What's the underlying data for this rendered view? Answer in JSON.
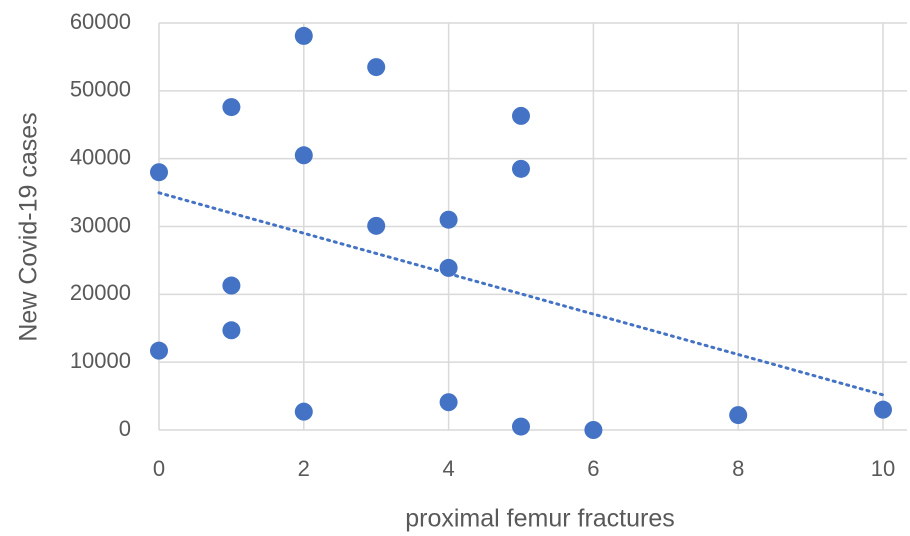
{
  "chart_data": {
    "type": "scatter",
    "x_label": "proximal femur fractures",
    "y_label": "New Covid-19 cases",
    "x": [
      0,
      0,
      1,
      1,
      1,
      2,
      2,
      2,
      3,
      3,
      4,
      4,
      4,
      5,
      5,
      5,
      6,
      8,
      10
    ],
    "values": [
      38000,
      11700,
      47600,
      21300,
      14700,
      58100,
      40500,
      2700,
      53500,
      30100,
      31000,
      23900,
      4100,
      46300,
      38500,
      500,
      0,
      2200,
      3000
    ],
    "color": "#4472c4",
    "trendline": "linear",
    "xlim": [
      0,
      10
    ],
    "xticks": [
      0,
      2,
      4,
      6,
      8,
      10
    ],
    "ylim": [
      0,
      60000
    ],
    "yticks": [
      0,
      10000,
      20000,
      30000,
      40000,
      50000,
      60000
    ],
    "grid": true
  }
}
